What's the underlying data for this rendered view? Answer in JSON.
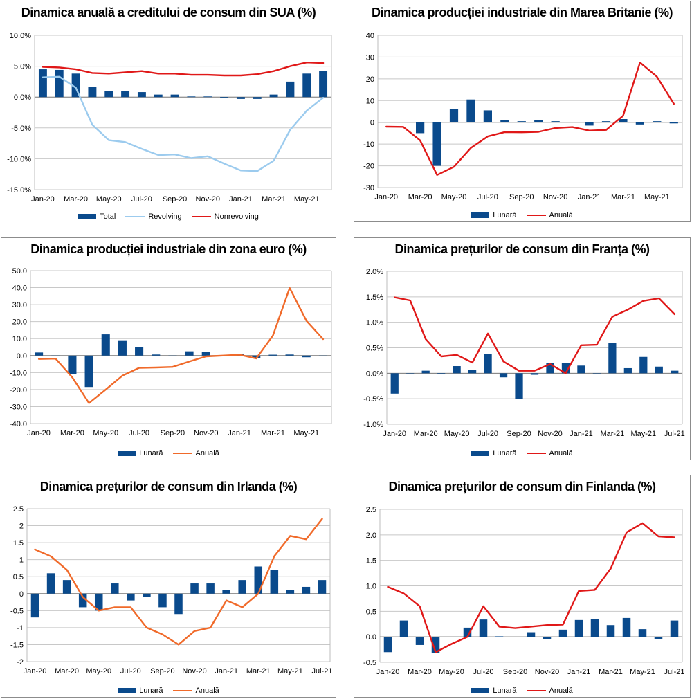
{
  "colors": {
    "bar": "#0a4a8c",
    "red": "#e01818",
    "orange": "#f06a2a",
    "lightblue": "#9ccbee",
    "grid": "#c8c8c8"
  },
  "chart_data": [
    {
      "type": "bar+line",
      "title": "Dinamica anuală a creditului de consum din SUA (%)",
      "categories": [
        "Jan-20",
        "Feb-20",
        "Mar-20",
        "Apr-20",
        "May-20",
        "Jun-20",
        "Jul-20",
        "Aug-20",
        "Sep-20",
        "Oct-20",
        "Nov-20",
        "Dec-20",
        "Jan-21",
        "Feb-21",
        "Mar-21",
        "Apr-21",
        "May-21",
        "Jun-21"
      ],
      "xticks": [
        "Jan-20",
        "Mar-20",
        "May-20",
        "Jul-20",
        "Sep-20",
        "Nov-20",
        "Jan-21",
        "Mar-21",
        "May-21"
      ],
      "ylim": [
        -15,
        10
      ],
      "yticks": [
        10,
        5,
        0,
        -5,
        -10,
        -15
      ],
      "ytick_labels": [
        "10.0%",
        "5.0%",
        "0.0%",
        "-5.0%",
        "-10.0%",
        "-15.0%"
      ],
      "series": [
        {
          "name": "Total",
          "kind": "bar",
          "color": "#0a4a8c",
          "values": [
            4.5,
            4.4,
            3.8,
            1.7,
            1.0,
            1.0,
            0.8,
            0.4,
            0.4,
            0.1,
            0.1,
            -0.1,
            -0.3,
            -0.3,
            0.4,
            2.5,
            3.8,
            4.2
          ]
        },
        {
          "name": "Revolving",
          "kind": "line",
          "color": "#9ccbee",
          "values": [
            3.2,
            3.3,
            1.5,
            -4.5,
            -7.0,
            -7.3,
            -8.4,
            -9.4,
            -9.3,
            -9.9,
            -9.6,
            -10.8,
            -11.9,
            -12.0,
            -10.3,
            -5.3,
            -2.2,
            -0.1
          ]
        },
        {
          "name": "Nonrevolving",
          "kind": "line",
          "color": "#e01818",
          "values": [
            4.9,
            4.8,
            4.5,
            3.9,
            3.8,
            4.0,
            4.2,
            3.8,
            3.8,
            3.6,
            3.6,
            3.5,
            3.5,
            3.7,
            4.2,
            5.0,
            5.6,
            5.5
          ]
        }
      ]
    },
    {
      "type": "bar+line",
      "title": "Dinamica producției industriale din Marea Britanie (%)",
      "categories": [
        "Jan-20",
        "Feb-20",
        "Mar-20",
        "Apr-20",
        "May-20",
        "Jun-20",
        "Jul-20",
        "Aug-20",
        "Sep-20",
        "Oct-20",
        "Nov-20",
        "Dec-20",
        "Jan-21",
        "Feb-21",
        "Mar-21",
        "Apr-21",
        "May-21",
        "Jun-21"
      ],
      "xticks": [
        "Jan-20",
        "Mar-20",
        "May-20",
        "Jul-20",
        "Sep-20",
        "Nov-20",
        "Jan-21",
        "Mar-21",
        "May-21"
      ],
      "ylim": [
        -30,
        40
      ],
      "yticks": [
        40,
        30,
        20,
        10,
        0,
        -10,
        -20,
        -30
      ],
      "ytick_labels": [
        "40",
        "30",
        "20",
        "10",
        "0",
        "-10",
        "-20",
        "-30"
      ],
      "series": [
        {
          "name": "Lunară",
          "kind": "bar",
          "color": "#0a4a8c",
          "values": [
            0.2,
            0.2,
            -5.0,
            -20.0,
            6.0,
            10.5,
            5.5,
            1.0,
            0.5,
            1.0,
            0.5,
            0.1,
            -1.5,
            0.5,
            1.5,
            -1.0,
            0.5,
            -0.5
          ]
        },
        {
          "name": "Anuală",
          "kind": "line",
          "color": "#e01818",
          "values": [
            -2.0,
            -2.1,
            -8.3,
            -24.2,
            -20.5,
            -11.8,
            -6.5,
            -4.5,
            -4.6,
            -4.4,
            -2.6,
            -2.2,
            -3.8,
            -3.5,
            3.0,
            27.5,
            21.0,
            8.5
          ]
        }
      ]
    },
    {
      "type": "bar+line",
      "title": "Dinamica producției industriale din zona euro (%)",
      "categories": [
        "Jan-20",
        "Feb-20",
        "Mar-20",
        "Apr-20",
        "May-20",
        "Jun-20",
        "Jul-20",
        "Aug-20",
        "Sep-20",
        "Oct-20",
        "Nov-20",
        "Dec-20",
        "Jan-21",
        "Feb-21",
        "Mar-21",
        "Apr-21",
        "May-21",
        "Jun-21"
      ],
      "xticks": [
        "Jan-20",
        "Mar-20",
        "May-20",
        "Jul-20",
        "Sep-20",
        "Nov-20",
        "Jan-21",
        "Mar-21",
        "May-21"
      ],
      "ylim": [
        -40,
        50
      ],
      "yticks": [
        50,
        40,
        30,
        20,
        10,
        0,
        -10,
        -20,
        -30,
        -40
      ],
      "ytick_labels": [
        "50.0",
        "40.0",
        "30.0",
        "20.0",
        "10.0",
        "0.0",
        "-10.0",
        "-20.0",
        "-30.0",
        "-40.0"
      ],
      "series": [
        {
          "name": "Lunară",
          "kind": "bar",
          "color": "#0a4a8c",
          "values": [
            1.8,
            -0.1,
            -11.0,
            -18.5,
            12.5,
            9.0,
            5.0,
            0.6,
            -0.4,
            2.5,
            2.0,
            -0.3,
            0.8,
            -1.5,
            0.5,
            0.6,
            -1.0,
            -0.3
          ]
        },
        {
          "name": "Anuală",
          "kind": "line",
          "color": "#f06a2a",
          "values": [
            -2.0,
            -1.8,
            -12.8,
            -28.0,
            -20.0,
            -11.8,
            -7.2,
            -7.0,
            -6.7,
            -3.5,
            -0.5,
            0.0,
            0.5,
            -1.7,
            11.8,
            39.8,
            20.5,
            9.7
          ]
        }
      ]
    },
    {
      "type": "bar+line",
      "title": "Dinamica prețurilor de consum din Franța (%)",
      "categories": [
        "Jan-20",
        "Feb-20",
        "Mar-20",
        "Apr-20",
        "May-20",
        "Jun-20",
        "Jul-20",
        "Aug-20",
        "Sep-20",
        "Oct-20",
        "Nov-20",
        "Dec-20",
        "Jan-21",
        "Feb-21",
        "Mar-21",
        "Apr-21",
        "May-21",
        "Jun-21",
        "Jul-21"
      ],
      "xticks": [
        "Jan-20",
        "Mar-20",
        "May-20",
        "Jul-20",
        "Sep-20",
        "Nov-20",
        "Jan-21",
        "Mar-21",
        "May-21",
        "Jul-21"
      ],
      "ylim": [
        -1.0,
        2.0
      ],
      "yticks": [
        2.0,
        1.5,
        1.0,
        0.5,
        0.0,
        -0.5,
        -1.0
      ],
      "ytick_labels": [
        "2.0%",
        "1.5%",
        "1.0%",
        "0.5%",
        "0.0%",
        "-0.5%",
        "-1.0%"
      ],
      "series": [
        {
          "name": "Lunară",
          "kind": "bar",
          "color": "#0a4a8c",
          "values": [
            -0.4,
            0.0,
            0.05,
            -0.02,
            0.14,
            0.07,
            0.38,
            -0.08,
            -0.5,
            -0.03,
            0.2,
            0.2,
            0.15,
            0.0,
            0.6,
            0.1,
            0.32,
            0.13,
            0.05
          ]
        },
        {
          "name": "Anuală",
          "kind": "line",
          "color": "#e01818",
          "values": [
            1.49,
            1.43,
            0.67,
            0.33,
            0.36,
            0.21,
            0.78,
            0.23,
            0.05,
            0.05,
            0.18,
            0.0,
            0.55,
            0.56,
            1.11,
            1.25,
            1.42,
            1.47,
            1.16
          ]
        }
      ]
    },
    {
      "type": "bar+line",
      "title": "Dinamica prețurilor de consum din Irlanda (%)",
      "categories": [
        "Jan-20",
        "Feb-20",
        "Mar-20",
        "Apr-20",
        "May-20",
        "Jun-20",
        "Jul-20",
        "Aug-20",
        "Sep-20",
        "Oct-20",
        "Nov-20",
        "Dec-20",
        "Jan-21",
        "Feb-21",
        "Mar-21",
        "Apr-21",
        "May-21",
        "Jun-21",
        "Jul-21"
      ],
      "xticks": [
        "Jan-20",
        "Mar-20",
        "May-20",
        "Jul-20",
        "Sep-20",
        "Nov-20",
        "Jan-21",
        "Mar-21",
        "May-21",
        "Jul-21"
      ],
      "ylim": [
        -2,
        2.5
      ],
      "yticks": [
        2.5,
        2,
        1.5,
        1,
        0.5,
        0,
        -0.5,
        -1,
        -1.5,
        -2
      ],
      "ytick_labels": [
        "2.5",
        "2",
        "1.5",
        "1",
        "0.5",
        "0",
        "-0.5",
        "-1",
        "-1.5",
        "-2"
      ],
      "series": [
        {
          "name": "Lunară",
          "kind": "bar",
          "color": "#0a4a8c",
          "values": [
            -0.7,
            0.6,
            0.4,
            -0.4,
            -0.5,
            0.3,
            -0.2,
            -0.1,
            -0.4,
            -0.6,
            0.3,
            0.3,
            0.1,
            0.4,
            0.8,
            0.7,
            0.1,
            0.2,
            0.4
          ]
        },
        {
          "name": "Anuală",
          "kind": "line",
          "color": "#f06a2a",
          "values": [
            1.3,
            1.1,
            0.7,
            -0.1,
            -0.5,
            -0.4,
            -0.4,
            -1.0,
            -1.2,
            -1.5,
            -1.1,
            -1.0,
            -0.2,
            -0.4,
            0.0,
            1.1,
            1.7,
            1.6,
            2.2
          ]
        }
      ]
    },
    {
      "type": "bar+line",
      "title": "Dinamica prețurilor de consum din Finlanda (%)",
      "categories": [
        "Jan-20",
        "Feb-20",
        "Mar-20",
        "Apr-20",
        "May-20",
        "Jun-20",
        "Jul-20",
        "Aug-20",
        "Sep-20",
        "Oct-20",
        "Nov-20",
        "Dec-20",
        "Jan-21",
        "Feb-21",
        "Mar-21",
        "Apr-21",
        "May-21",
        "Jun-21",
        "Jul-21"
      ],
      "xticks": [
        "Jan-20",
        "Mar-20",
        "May-20",
        "Jul-20",
        "Sep-20",
        "Nov-20",
        "Jan-21",
        "Mar-21",
        "May-21",
        "Jul-21"
      ],
      "ylim": [
        -0.5,
        2.5
      ],
      "yticks": [
        2.5,
        2.0,
        1.5,
        1.0,
        0.5,
        0.0,
        -0.5
      ],
      "ytick_labels": [
        "2.5",
        "2.0",
        "1.5",
        "1.0",
        "0.5",
        "0.0",
        "-0.5"
      ],
      "series": [
        {
          "name": "Lunară",
          "kind": "bar",
          "color": "#0a4a8c",
          "values": [
            -0.3,
            0.32,
            -0.16,
            -0.32,
            -0.01,
            0.18,
            0.34,
            0.01,
            0.0,
            0.09,
            -0.05,
            0.14,
            0.33,
            0.35,
            0.23,
            0.37,
            0.15,
            -0.04,
            0.32
          ]
        },
        {
          "name": "Anuală",
          "kind": "line",
          "color": "#e01818",
          "values": [
            0.98,
            0.85,
            0.6,
            -0.3,
            -0.14,
            0.0,
            0.6,
            0.2,
            0.17,
            0.2,
            0.23,
            0.24,
            0.9,
            0.92,
            1.34,
            2.05,
            2.23,
            1.97,
            1.95
          ]
        }
      ]
    }
  ]
}
